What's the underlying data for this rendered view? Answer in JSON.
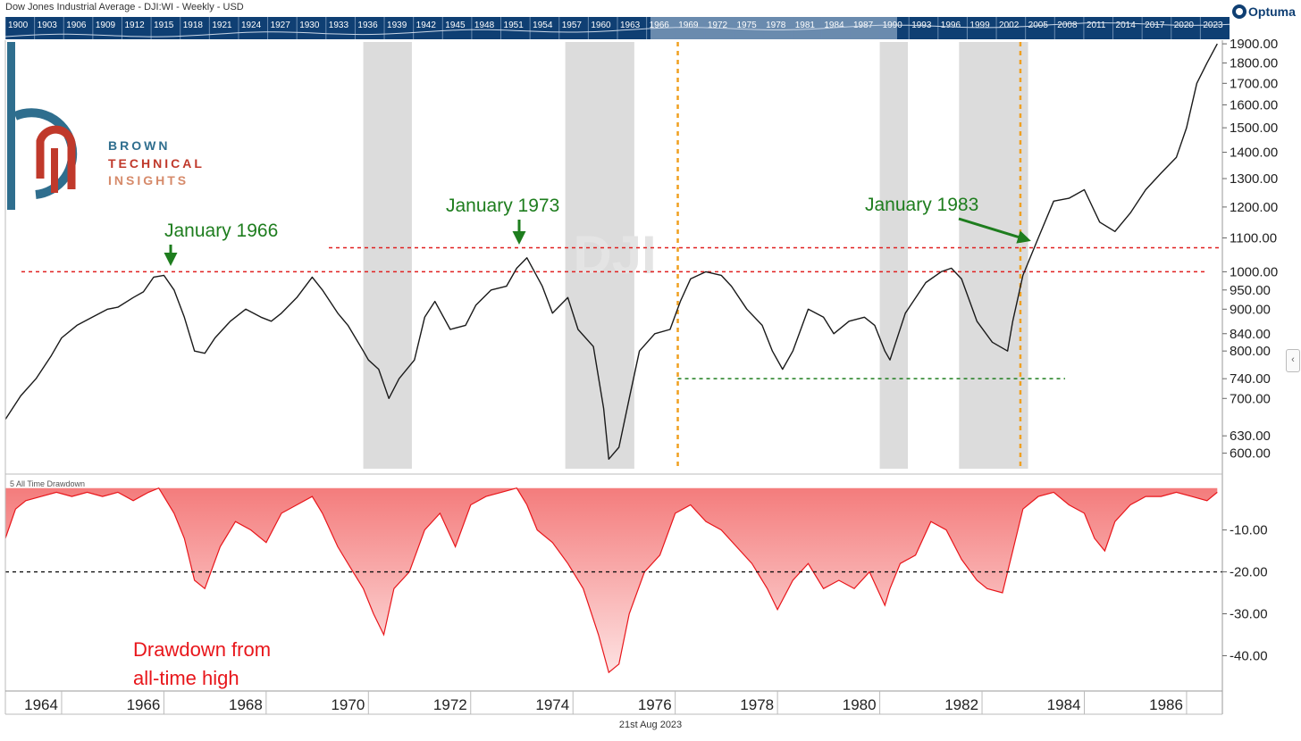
{
  "header": {
    "title": "Dow Jones Industrial Average - DJI:WI - Weekly - USD",
    "brand": "Optuma"
  },
  "navigator_years": [
    "1900",
    "1903",
    "1906",
    "1909",
    "1912",
    "1915",
    "1918",
    "1921",
    "1924",
    "1927",
    "1930",
    "1933",
    "1936",
    "1939",
    "1942",
    "1945",
    "1948",
    "1951",
    "1954",
    "1957",
    "1960",
    "1963",
    "1966",
    "1969",
    "1972",
    "1975",
    "1978",
    "1981",
    "1984",
    "1987",
    "1990",
    "1993",
    "1996",
    "1999",
    "2002",
    "2005",
    "2008",
    "2011",
    "2014",
    "2017",
    "2020",
    "2023"
  ],
  "watermark": "DJI",
  "logo": {
    "line1": "BROWN",
    "line2": "TECHNICAL",
    "line3": "INSIGHTS"
  },
  "footer_date": "21st Aug 2023",
  "drawdown_note": "Drawdown from\nall-time high",
  "colors": {
    "price": "#1a1a1a",
    "drawdown_line": "#e8161b",
    "drawdown_fill": "#f47c7c",
    "annotation": "#1e7d1e",
    "resistance": "#e02020",
    "event": "#f0a020",
    "recession": "#dcdcdc",
    "nav_bg": "#0f3f73"
  },
  "chart_data": [
    {
      "type": "line",
      "title": "Dow Jones Industrial Average - DJI:WI - Weekly - USD",
      "scale": "log",
      "ylim": [
        570,
        1910
      ],
      "xlim": [
        1962.9,
        1986.7
      ],
      "x_tick_labels": [
        "1964",
        "1966",
        "1968",
        "1970",
        "1972",
        "1974",
        "1976",
        "1978",
        "1980",
        "1982",
        "1984",
        "1986"
      ],
      "y_tick_labels": [
        "600.00",
        "630.00",
        "700.00",
        "740.00",
        "800.00",
        "840.00",
        "900.00",
        "950.00",
        "1000.00",
        "1100.00",
        "1200.00",
        "1300.00",
        "1400.00",
        "1500.00",
        "1600.00",
        "1700.00",
        "1800.00",
        "1900.00"
      ],
      "series": [
        {
          "x": [
            1962.9,
            1963.2,
            1963.5,
            1963.8,
            1964.0,
            1964.3,
            1964.6,
            1964.9,
            1965.1,
            1965.4,
            1965.6,
            1965.8,
            1966.0,
            1966.2,
            1966.4,
            1966.6,
            1966.8,
            1967.0,
            1967.3,
            1967.6,
            1967.9,
            1968.1,
            1968.3,
            1968.6,
            1968.9,
            1969.1,
            1969.4,
            1969.6,
            1969.9,
            1970.0,
            1970.2,
            1970.4,
            1970.6,
            1970.9,
            1971.1,
            1971.3,
            1971.6,
            1971.9,
            1972.1,
            1972.4,
            1972.7,
            1972.9,
            1973.1,
            1973.4,
            1973.6,
            1973.9,
            1974.1,
            1974.4,
            1974.6,
            1974.7,
            1974.9,
            1975.1,
            1975.3,
            1975.6,
            1975.9,
            1976.1,
            1976.3,
            1976.6,
            1976.9,
            1977.1,
            1977.4,
            1977.7,
            1977.9,
            1978.1,
            1978.3,
            1978.6,
            1978.9,
            1979.1,
            1979.4,
            1979.7,
            1979.9,
            1980.1,
            1980.2,
            1980.5,
            1980.9,
            1981.2,
            1981.4,
            1981.6,
            1981.9,
            1982.2,
            1982.5,
            1982.6,
            1982.8,
            1983.1,
            1983.4,
            1983.7,
            1984.0,
            1984.3,
            1984.6,
            1984.9,
            1985.2,
            1985.5,
            1985.8,
            1986.0,
            1986.2,
            1986.4,
            1986.6
          ],
          "y": [
            660,
            705,
            740,
            790,
            830,
            860,
            880,
            900,
            905,
            930,
            945,
            985,
            990,
            950,
            880,
            800,
            795,
            830,
            870,
            900,
            880,
            870,
            890,
            930,
            985,
            950,
            890,
            860,
            800,
            780,
            760,
            700,
            740,
            780,
            880,
            920,
            850,
            860,
            910,
            950,
            960,
            1010,
            1040,
            960,
            890,
            930,
            850,
            810,
            680,
            590,
            610,
            700,
            800,
            840,
            850,
            920,
            980,
            1000,
            990,
            960,
            900,
            860,
            800,
            760,
            800,
            900,
            880,
            840,
            870,
            880,
            860,
            800,
            780,
            890,
            970,
            1000,
            1010,
            980,
            870,
            820,
            800,
            870,
            990,
            1100,
            1220,
            1230,
            1260,
            1150,
            1120,
            1180,
            1260,
            1320,
            1380,
            1500,
            1700,
            1800,
            1900
          ]
        }
      ],
      "annotations": [
        "January 1966",
        "January 1973",
        "January 1983"
      ],
      "reference_lines": {
        "resistance_1": 1000,
        "resistance_2": 1070,
        "support": 740
      },
      "event_lines_x": [
        1976.05,
        1982.75
      ],
      "recession_bands": [
        [
          1969.9,
          1970.85
        ],
        [
          1973.85,
          1975.2
        ],
        [
          1980.0,
          1980.55
        ],
        [
          1981.55,
          1982.9
        ]
      ]
    },
    {
      "type": "area",
      "title": "5 All Time Drawdown",
      "ylim": [
        -48,
        1
      ],
      "y_tick_labels": [
        "-10.00",
        "-20.00",
        "-30.00",
        "-40.00"
      ],
      "series": [
        {
          "x": [
            1962.9,
            1963.1,
            1963.3,
            1963.6,
            1963.9,
            1964.2,
            1964.5,
            1964.8,
            1965.1,
            1965.4,
            1965.7,
            1965.9,
            1966.2,
            1966.4,
            1966.6,
            1966.8,
            1967.1,
            1967.4,
            1967.7,
            1968.0,
            1968.3,
            1968.6,
            1968.9,
            1969.1,
            1969.4,
            1969.7,
            1969.9,
            1970.1,
            1970.3,
            1970.5,
            1970.8,
            1971.1,
            1971.4,
            1971.7,
            1972.0,
            1972.3,
            1972.6,
            1972.9,
            1973.1,
            1973.3,
            1973.6,
            1973.9,
            1974.2,
            1974.5,
            1974.7,
            1974.9,
            1975.1,
            1975.4,
            1975.7,
            1976.0,
            1976.3,
            1976.6,
            1976.9,
            1977.2,
            1977.5,
            1977.8,
            1978.0,
            1978.3,
            1978.6,
            1978.9,
            1979.2,
            1979.5,
            1979.8,
            1980.1,
            1980.2,
            1980.4,
            1980.7,
            1981.0,
            1981.3,
            1981.6,
            1981.9,
            1982.1,
            1982.4,
            1982.6,
            1982.8,
            1983.1,
            1983.4,
            1983.7,
            1984.0,
            1984.2,
            1984.4,
            1984.6,
            1984.9,
            1985.2,
            1985.5,
            1985.8,
            1986.1,
            1986.4,
            1986.6
          ],
          "y": [
            -12,
            -5,
            -3,
            -2,
            -1,
            -2,
            -1,
            -2,
            -1,
            -3,
            -1,
            0,
            -6,
            -12,
            -22,
            -24,
            -14,
            -8,
            -10,
            -13,
            -6,
            -4,
            -2,
            -6,
            -14,
            -20,
            -24,
            -30,
            -35,
            -24,
            -20,
            -10,
            -6,
            -14,
            -4,
            -2,
            -1,
            0,
            -4,
            -10,
            -13,
            -18,
            -24,
            -35,
            -44,
            -42,
            -30,
            -20,
            -16,
            -6,
            -4,
            -8,
            -10,
            -14,
            -18,
            -24,
            -29,
            -22,
            -18,
            -24,
            -22,
            -24,
            -20,
            -28,
            -24,
            -18,
            -16,
            -8,
            -10,
            -17,
            -22,
            -24,
            -25,
            -15,
            -5,
            -2,
            -1,
            -4,
            -6,
            -12,
            -15,
            -8,
            -4,
            -2,
            -2,
            -1,
            -2,
            -3,
            -1
          ]
        }
      ],
      "reference_lines": {
        "threshold": -20
      }
    }
  ]
}
